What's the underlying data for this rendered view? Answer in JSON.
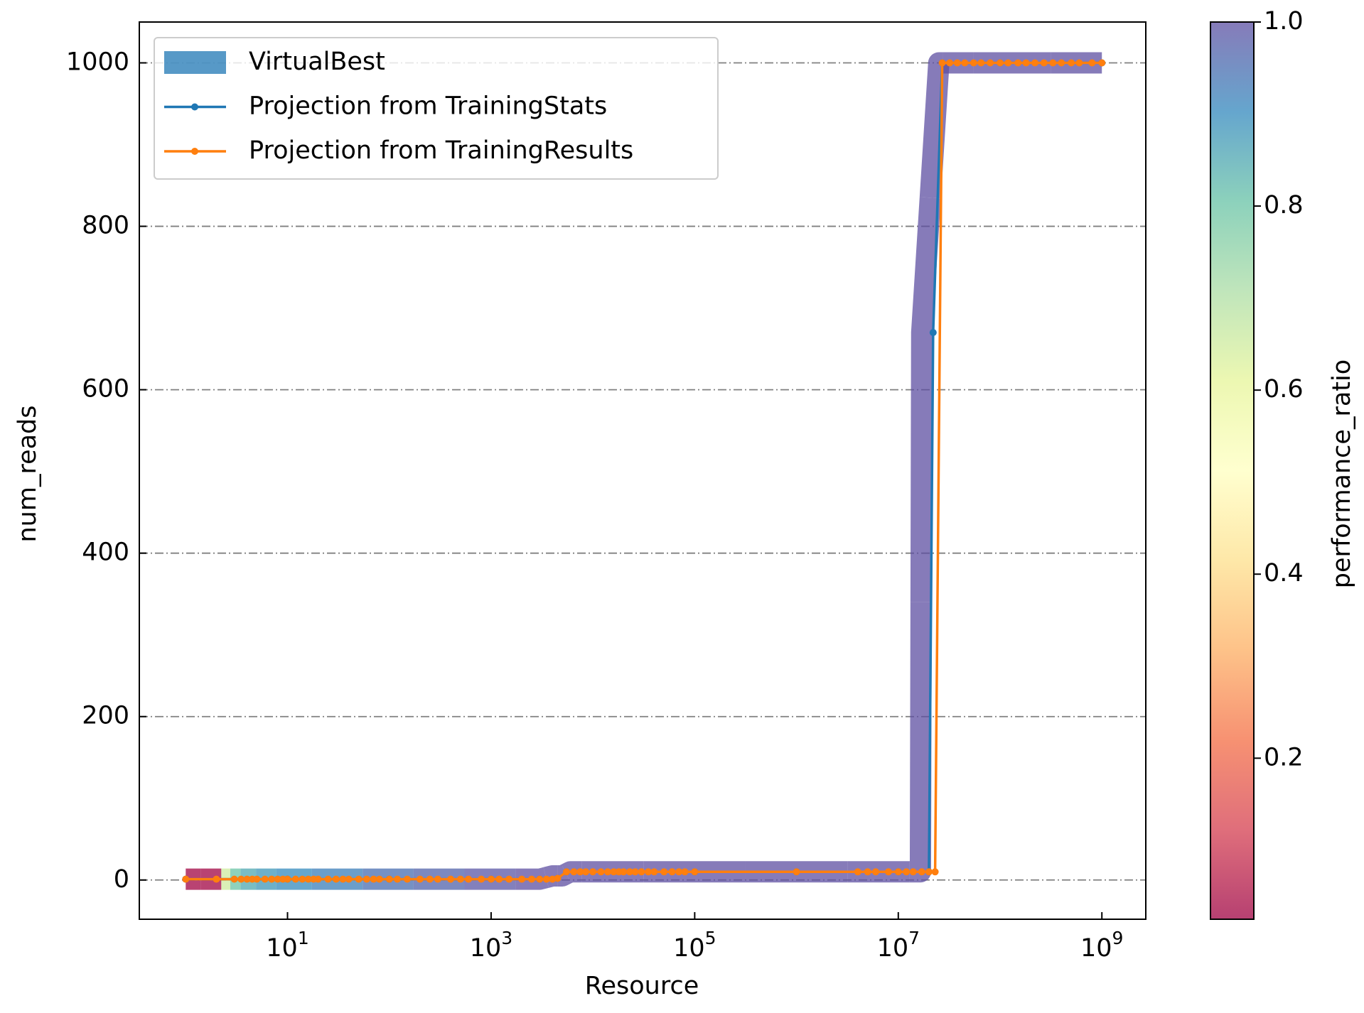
{
  "chart_data": {
    "type": "line",
    "xlabel": "Resource",
    "ylabel": "num_reads",
    "xscale": "log",
    "xlim": [
      0.35,
      2700000000
    ],
    "ylim": [
      -48,
      1050
    ],
    "xticks": [
      {
        "value": 10,
        "label": "10^1"
      },
      {
        "value": 1000,
        "label": "10^3"
      },
      {
        "value": 100000,
        "label": "10^5"
      },
      {
        "value": 10000000,
        "label": "10^7"
      },
      {
        "value": 1000000000,
        "label": "10^9"
      }
    ],
    "yticks": [
      0,
      200,
      400,
      600,
      800,
      1000
    ],
    "grid": true,
    "legend": "upper left",
    "colorbar": {
      "label": "performance_ratio",
      "clim": [
        0.025,
        1.0
      ],
      "ticks": [
        0.2,
        0.4,
        0.6,
        0.8,
        1.0
      ],
      "colormap": [
        "#9e0142",
        "#d53e4f",
        "#f46d43",
        "#fdae61",
        "#fee08b",
        "#ffffbf",
        "#e6f598",
        "#abdda4",
        "#66c2a5",
        "#3288bd",
        "#5e4fa2"
      ],
      "alpha": 0.75
    },
    "series": [
      {
        "name": "VirtualBest",
        "color": "#1f77b4",
        "kind": "band",
        "x": [
          1,
          2,
          2.5,
          3,
          4,
          6,
          10,
          30,
          100,
          300,
          1000,
          3000,
          4000,
          5000,
          6000,
          10000,
          100000,
          1000000,
          10000000,
          16500000,
          17000000,
          25000000,
          30000000,
          100000000,
          1000000000
        ],
        "y": [
          1,
          1,
          1,
          1,
          1,
          1,
          1,
          1,
          1,
          1,
          1,
          1,
          5,
          5,
          10,
          10,
          10,
          10,
          10,
          10,
          670,
          1000,
          1000,
          1000,
          1000
        ],
        "performance_ratio": [
          0.03,
          0.03,
          0.65,
          0.8,
          0.85,
          0.88,
          0.9,
          0.92,
          0.95,
          0.97,
          0.99,
          1,
          1,
          1,
          1,
          1,
          1,
          1,
          1,
          1,
          1,
          1,
          1,
          1,
          1
        ]
      },
      {
        "name": "Projection from TrainingStats",
        "color": "#1f77b4",
        "kind": "line",
        "x": [
          1,
          10,
          100,
          1000,
          3000,
          4500,
          5500,
          100000,
          1000000,
          10000000,
          20000000,
          22000000,
          27000000,
          100000000,
          1000000000
        ],
        "y": [
          1,
          1,
          1,
          1,
          1,
          2,
          10,
          10,
          10,
          10,
          10,
          670,
          1000,
          1000,
          1000
        ]
      },
      {
        "name": "Projection from TrainingResults",
        "color": "#ff7f0e",
        "kind": "line",
        "x": [
          1,
          2,
          3,
          3.5,
          4,
          4.5,
          5,
          6,
          7,
          8,
          9,
          10,
          12,
          14,
          16,
          18,
          20,
          25,
          30,
          35,
          40,
          50,
          60,
          70,
          80,
          100,
          120,
          150,
          200,
          250,
          300,
          400,
          500,
          600,
          800,
          1000,
          1200,
          1500,
          2000,
          2500,
          3000,
          3500,
          4000,
          4500,
          5500,
          6500,
          7500,
          8500,
          10000,
          12000,
          14000,
          16000,
          18000,
          20000,
          23000,
          26000,
          30000,
          35000,
          40000,
          50000,
          60000,
          70000,
          80000,
          100000,
          1000000,
          4000000,
          5000000,
          6000000,
          8000000,
          10000000,
          12000000,
          14000000,
          17000000,
          20000000,
          23000000,
          27000000,
          32000000,
          38000000,
          45000000,
          55000000,
          65000000,
          80000000,
          100000000,
          120000000,
          150000000,
          180000000,
          220000000,
          270000000,
          330000000,
          400000000,
          500000000,
          600000000,
          800000000,
          1000000000
        ],
        "y": [
          1,
          1,
          1,
          1,
          1,
          1,
          1,
          1,
          1,
          1,
          1,
          1,
          1,
          1,
          1,
          1,
          1,
          1,
          1,
          1,
          1,
          1,
          1,
          1,
          1,
          1,
          1,
          1,
          1,
          1,
          1,
          1,
          1,
          1,
          1,
          1,
          1,
          1,
          1,
          1,
          1,
          1,
          1,
          2,
          10,
          10,
          10,
          10,
          10,
          10,
          10,
          10,
          10,
          10,
          10,
          10,
          10,
          10,
          10,
          10,
          10,
          10,
          10,
          10,
          10,
          10,
          10,
          10,
          10,
          10,
          10,
          10,
          10,
          10,
          10,
          1000,
          1000,
          1000,
          1000,
          1000,
          1000,
          1000,
          1000,
          1000,
          1000,
          1000,
          1000,
          1000,
          1000,
          1000,
          1000,
          1000,
          1000,
          1000
        ]
      }
    ]
  }
}
